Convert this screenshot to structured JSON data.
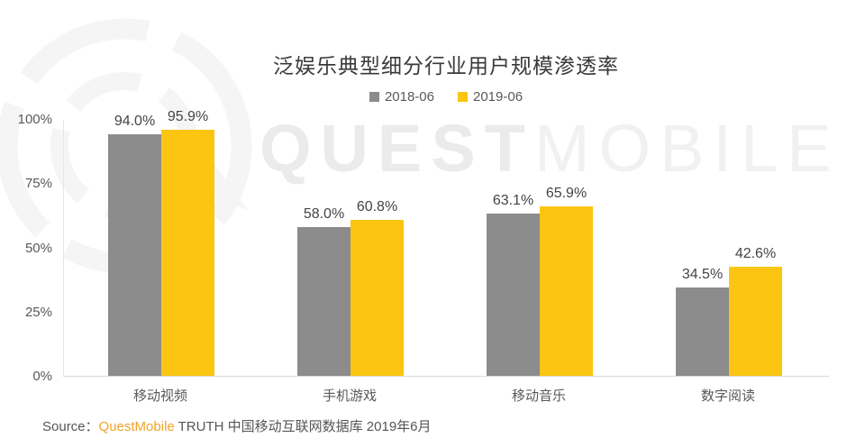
{
  "watermark": {
    "bold": "QUEST",
    "light": "MOBILE"
  },
  "source": {
    "prefix": "Source：",
    "brand": "QuestMobile",
    "rest": " TRUTH 中国移动互联网数据库 2019年6月"
  },
  "colors": {
    "series_2018": "#8c8c8c",
    "series_2019": "#fbc511",
    "axis_line": "#d9d9d9",
    "brand_orange": "#f0a32a"
  },
  "chart_data": {
    "type": "bar",
    "title": "泛娱乐典型细分行业用户规模渗透率",
    "categories": [
      "移动视频",
      "手机游戏",
      "移动音乐",
      "数字阅读"
    ],
    "series": [
      {
        "name": "2018-06",
        "color": "#8c8c8c",
        "values": [
          94.0,
          58.0,
          63.1,
          34.5
        ]
      },
      {
        "name": "2019-06",
        "color": "#fbc511",
        "values": [
          95.9,
          60.8,
          65.9,
          42.6
        ]
      }
    ],
    "value_labels": [
      [
        "94.0%",
        "95.9%"
      ],
      [
        "58.0%",
        "60.8%"
      ],
      [
        "63.1%",
        "65.9%"
      ],
      [
        "34.5%",
        "42.6%"
      ]
    ],
    "xlabel": "",
    "ylabel": "",
    "ylim": [
      0,
      100
    ],
    "yticks": [
      0,
      25,
      50,
      75,
      100
    ],
    "ytick_labels": [
      "0%",
      "25%",
      "50%",
      "75%",
      "100%"
    ],
    "grid": false,
    "legend_position": "top-center"
  }
}
